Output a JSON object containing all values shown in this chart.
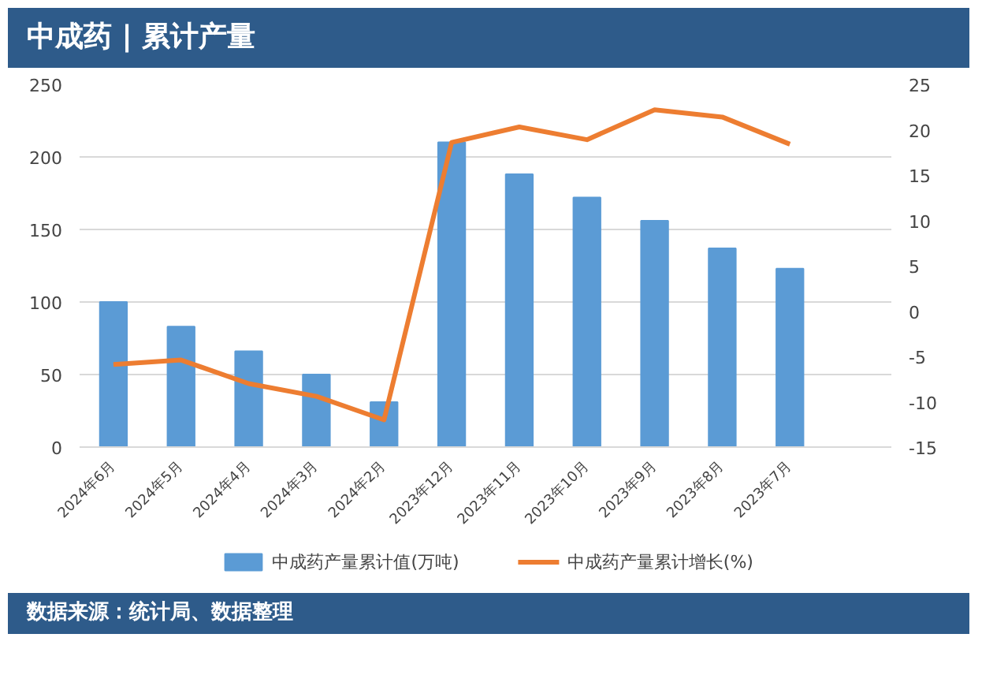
{
  "chart_data": {
    "type": "bar",
    "title": "中成药 | 累计产量",
    "categories": [
      "2024年6月",
      "2024年5月",
      "2024年4月",
      "2024年3月",
      "2024年2月",
      "2023年12月",
      "2023年11月",
      "2023年10月",
      "2023年9月",
      "2023年8月",
      "2023年7月"
    ],
    "series": [
      {
        "name": "中成药产量累计值(万吨)",
        "color": "#5b9bd5",
        "values": [
          100,
          83,
          66,
          50,
          31,
          210,
          188,
          172,
          156,
          137,
          123
        ]
      },
      {
        "name": "中成药产量累计增长(%)",
        "type": "line",
        "axis": "y2",
        "color": "#ed7d31",
        "values": [
          -5.9,
          -5.4,
          -8.0,
          -9.4,
          -12.0,
          18.6,
          20.3,
          18.9,
          22.2,
          21.4,
          18.4
        ]
      }
    ],
    "ylim": [
      0,
      250
    ],
    "yticks": [
      0,
      50,
      100,
      150,
      200,
      250
    ],
    "y2lim": [
      -15,
      25
    ],
    "y2ticks": [
      -15,
      -10,
      -5,
      0,
      5,
      10,
      15,
      20,
      25
    ],
    "grid": "y",
    "legend": "bottom",
    "annotations": [
      "数据来源：统计局、数据整理"
    ]
  }
}
